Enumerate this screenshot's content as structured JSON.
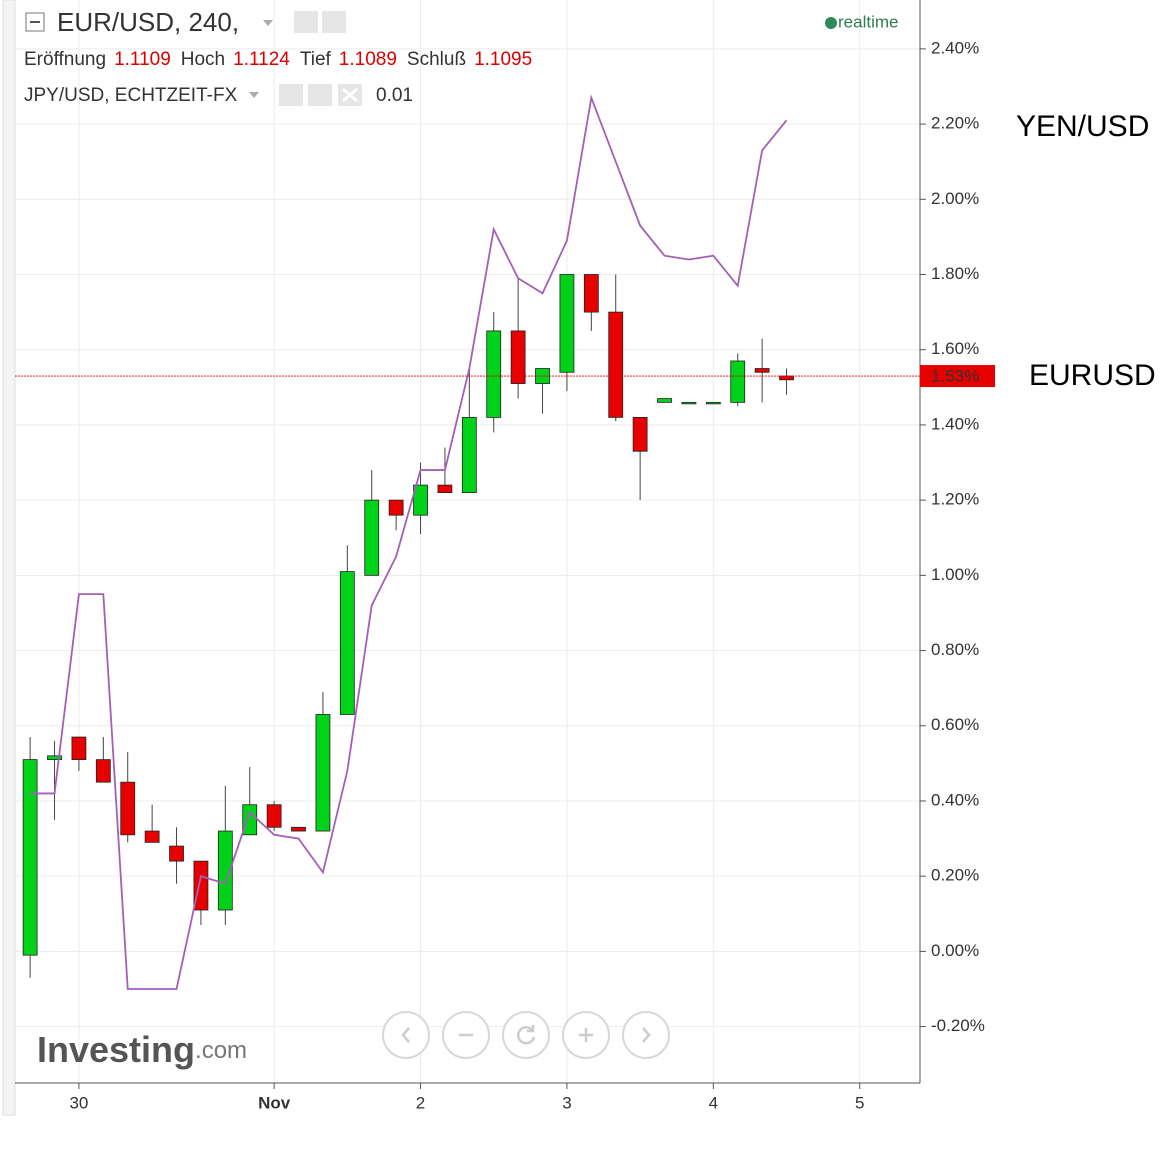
{
  "header": {
    "symbol": "EUR/USD, 240,",
    "status": "realtime",
    "ohlc": [
      {
        "label": "Eröffnung",
        "value": 1.1109
      },
      {
        "label": "Hoch",
        "value": 1.1124
      },
      {
        "label": "Tief",
        "value": 1.1089
      },
      {
        "label": "Schluß",
        "value": 1.1095
      }
    ],
    "indicator": {
      "name": "JPY/USD, ECHTZEIT-FX",
      "value": 0.01
    }
  },
  "watermark": {
    "brand": "Investing",
    "suffix": ".com"
  },
  "chart_data": {
    "type": "candlestick",
    "categories": [
      null,
      null,
      "30",
      null,
      null,
      null,
      null,
      null,
      null,
      null,
      "Nov",
      null,
      null,
      null,
      null,
      null,
      "2",
      null,
      null,
      null,
      null,
      null,
      "3",
      null,
      null,
      null,
      null,
      null,
      "4",
      null,
      null,
      null,
      null,
      null,
      "5"
    ],
    "ylim": [
      -0.35,
      2.53
    ],
    "yticks": [
      {
        "value": -0.2,
        "label": "-0.20%"
      },
      {
        "value": 0,
        "label": "0.00%"
      },
      {
        "value": 0.2,
        "label": "0.20%"
      },
      {
        "value": 0.4,
        "label": "0.40%"
      },
      {
        "value": 0.6,
        "label": "0.60%"
      },
      {
        "value": 0.8,
        "label": "0.80%"
      },
      {
        "value": 1,
        "label": "1.00%"
      },
      {
        "value": 1.2,
        "label": "1.20%"
      },
      {
        "value": 1.4,
        "label": "1.40%"
      },
      {
        "value": 1.6,
        "label": "1.60%"
      },
      {
        "value": 1.8,
        "label": "1.80%"
      },
      {
        "value": 2,
        "label": "2.00%"
      },
      {
        "value": 2.2,
        "label": "2.20%"
      },
      {
        "value": 2.4,
        "label": "2.40%"
      }
    ],
    "grid": true,
    "series": [
      {
        "name": "EURUSD",
        "type": "candlestick",
        "up_color": "#00d21a",
        "down_color": "#e60000",
        "open": [
          -0.01,
          0.51,
          0.57,
          0.51,
          0.45,
          0.32,
          0.28,
          0.24,
          0.11,
          0.31,
          0.39,
          0.33,
          0.32,
          0.63,
          1.0,
          1.2,
          1.16,
          1.24,
          1.22,
          1.42,
          1.65,
          1.51,
          1.54,
          1.8,
          1.7,
          1.42,
          1.46,
          1.46,
          1.46,
          1.46,
          1.55,
          1.53,
          null,
          null,
          null
        ],
        "high": [
          0.57,
          0.56,
          0.57,
          0.57,
          0.53,
          0.39,
          0.33,
          0.24,
          0.44,
          0.49,
          0.4,
          0.33,
          0.69,
          1.08,
          1.28,
          1.2,
          1.3,
          1.34,
          1.55,
          1.7,
          1.79,
          1.55,
          1.8,
          1.8,
          1.8,
          1.42,
          1.47,
          1.46,
          1.46,
          1.59,
          1.63,
          1.55,
          null,
          null,
          null
        ],
        "low": [
          -0.07,
          0.35,
          0.48,
          0.45,
          0.29,
          0.29,
          0.18,
          0.07,
          0.07,
          0.32,
          0.32,
          0.32,
          0.32,
          0.63,
          1.0,
          1.12,
          1.11,
          1.22,
          1.22,
          1.38,
          1.47,
          1.43,
          1.49,
          1.65,
          1.41,
          1.2,
          1.46,
          1.46,
          1.46,
          1.45,
          1.46,
          1.48,
          null,
          null,
          null
        ],
        "close": [
          0.51,
          0.52,
          0.51,
          0.45,
          0.31,
          0.29,
          0.24,
          0.11,
          0.32,
          0.39,
          0.33,
          0.32,
          0.63,
          1.01,
          1.2,
          1.16,
          1.24,
          1.22,
          1.42,
          1.65,
          1.51,
          1.55,
          1.8,
          1.7,
          1.42,
          1.33,
          1.47,
          1.46,
          1.46,
          1.57,
          1.54,
          1.52,
          null,
          null,
          null
        ]
      },
      {
        "name": "YEN/USD",
        "type": "line",
        "color": "#a45fb8",
        "values": [
          0.42,
          0.42,
          0.95,
          0.95,
          -0.1,
          -0.1,
          -0.1,
          0.2,
          0.18,
          0.37,
          0.31,
          0.3,
          0.21,
          0.48,
          0.92,
          1.05,
          1.28,
          1.28,
          1.55,
          1.92,
          1.79,
          1.75,
          1.89,
          2.27,
          2.1,
          1.93,
          1.85,
          1.84,
          1.85,
          1.77,
          2.13,
          2.21,
          null,
          null,
          null
        ]
      }
    ],
    "last_price": {
      "value": 1.53,
      "label": "1.53%",
      "color": "#e60000"
    }
  }
}
